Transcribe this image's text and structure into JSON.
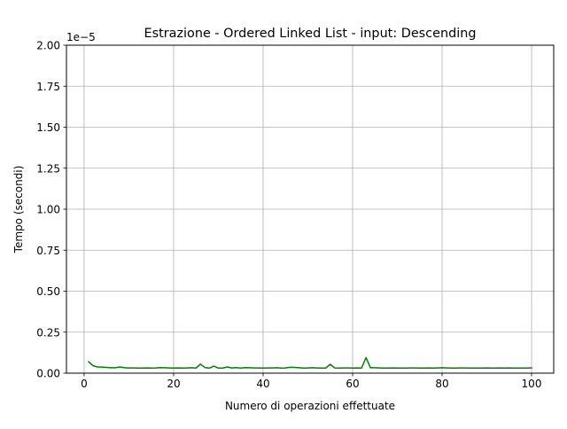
{
  "chart_data": {
    "type": "line",
    "title": "Estrazione - Ordered Linked List - input: Descending",
    "xlabel": "Numero di operazioni effettuate",
    "ylabel": "Tempo (secondi)",
    "y_offset_label": "1e−5",
    "xlim": [
      -3.95,
      104.95
    ],
    "ylim": [
      0,
      2.0
    ],
    "x_ticks": [
      0,
      20,
      40,
      60,
      80,
      100
    ],
    "x_tick_labels": [
      "0",
      "20",
      "40",
      "60",
      "80",
      "100"
    ],
    "y_ticks": [
      0,
      0.25,
      0.5,
      0.75,
      1.0,
      1.25,
      1.5,
      1.75,
      2.0
    ],
    "y_tick_labels": [
      "0.00",
      "0.25",
      "0.50",
      "0.75",
      "1.00",
      "1.25",
      "1.50",
      "1.75",
      "2.00"
    ],
    "grid": true,
    "series": [
      {
        "color": "#008000",
        "x": [
          1,
          2,
          3,
          4,
          5,
          6,
          7,
          8,
          9,
          10,
          11,
          12,
          13,
          14,
          15,
          16,
          17,
          18,
          19,
          20,
          21,
          22,
          23,
          24,
          25,
          26,
          27,
          28,
          29,
          30,
          31,
          32,
          33,
          34,
          35,
          36,
          37,
          38,
          39,
          40,
          41,
          42,
          43,
          44,
          45,
          46,
          47,
          48,
          49,
          50,
          51,
          52,
          53,
          54,
          55,
          56,
          57,
          58,
          59,
          60,
          61,
          62,
          63,
          64,
          65,
          66,
          67,
          68,
          69,
          70,
          71,
          72,
          73,
          74,
          75,
          76,
          77,
          78,
          79,
          80,
          81,
          82,
          83,
          84,
          85,
          86,
          87,
          88,
          89,
          90,
          91,
          92,
          93,
          94,
          95,
          96,
          97,
          98,
          99,
          100
        ],
        "values": [
          0.07,
          0.045,
          0.038,
          0.037,
          0.035,
          0.033,
          0.033,
          0.038,
          0.033,
          0.032,
          0.032,
          0.031,
          0.031,
          0.032,
          0.031,
          0.032,
          0.034,
          0.033,
          0.032,
          0.031,
          0.032,
          0.031,
          0.032,
          0.033,
          0.031,
          0.055,
          0.034,
          0.031,
          0.043,
          0.031,
          0.031,
          0.038,
          0.032,
          0.034,
          0.031,
          0.034,
          0.033,
          0.032,
          0.032,
          0.031,
          0.032,
          0.032,
          0.033,
          0.031,
          0.032,
          0.036,
          0.035,
          0.033,
          0.031,
          0.032,
          0.033,
          0.032,
          0.031,
          0.031,
          0.054,
          0.032,
          0.031,
          0.032,
          0.032,
          0.031,
          0.032,
          0.031,
          0.095,
          0.033,
          0.033,
          0.032,
          0.031,
          0.031,
          0.032,
          0.031,
          0.031,
          0.031,
          0.032,
          0.032,
          0.031,
          0.031,
          0.032,
          0.031,
          0.032,
          0.033,
          0.032,
          0.031,
          0.031,
          0.032,
          0.032,
          0.031,
          0.031,
          0.031,
          0.031,
          0.032,
          0.031,
          0.031,
          0.032,
          0.031,
          0.032,
          0.031,
          0.031,
          0.031,
          0.031,
          0.032
        ]
      }
    ]
  }
}
